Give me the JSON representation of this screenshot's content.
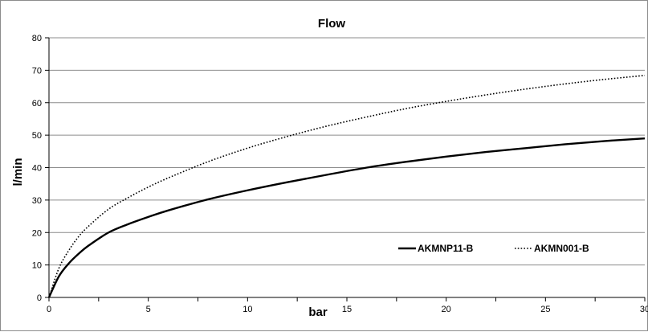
{
  "chart_data": {
    "type": "line",
    "title": "Flow",
    "xlabel": "bar",
    "ylabel": "l/min",
    "xlim": [
      0,
      30
    ],
    "ylim": [
      0,
      80
    ],
    "x_ticks": [
      0,
      5,
      10,
      15,
      20,
      25,
      30
    ],
    "y_ticks": [
      0,
      10,
      20,
      30,
      40,
      50,
      60,
      70,
      80
    ],
    "grid": "horizontal",
    "legend": "bottom-right",
    "series": [
      {
        "name": "AKMNP11-B",
        "style": "solid",
        "color": "#000000",
        "x": [
          0,
          0.5,
          1,
          1.5,
          2,
          3,
          4,
          5,
          6,
          8,
          10,
          12,
          14,
          16,
          18,
          20,
          22,
          24,
          26,
          28,
          30
        ],
        "values": [
          0,
          6.5,
          10.5,
          13.5,
          16,
          20,
          22.6,
          24.8,
          26.8,
          30.2,
          33,
          35.5,
          37.8,
          40,
          41.8,
          43.4,
          44.8,
          46,
          47.2,
          48.2,
          49
        ]
      },
      {
        "name": "AKMN001-B",
        "style": "dotted",
        "color": "#000000",
        "x": [
          0,
          0.5,
          1,
          1.5,
          2,
          3,
          4,
          5,
          6,
          8,
          10,
          12,
          14,
          16,
          18,
          20,
          22,
          24,
          26,
          28,
          30
        ],
        "values": [
          0,
          9,
          14.5,
          18.8,
          22,
          27.2,
          30.8,
          34,
          36.8,
          41.8,
          46,
          49.6,
          52.8,
          55.6,
          58.2,
          60.4,
          62.4,
          64.2,
          65.8,
          67.2,
          68.4
        ]
      }
    ]
  }
}
